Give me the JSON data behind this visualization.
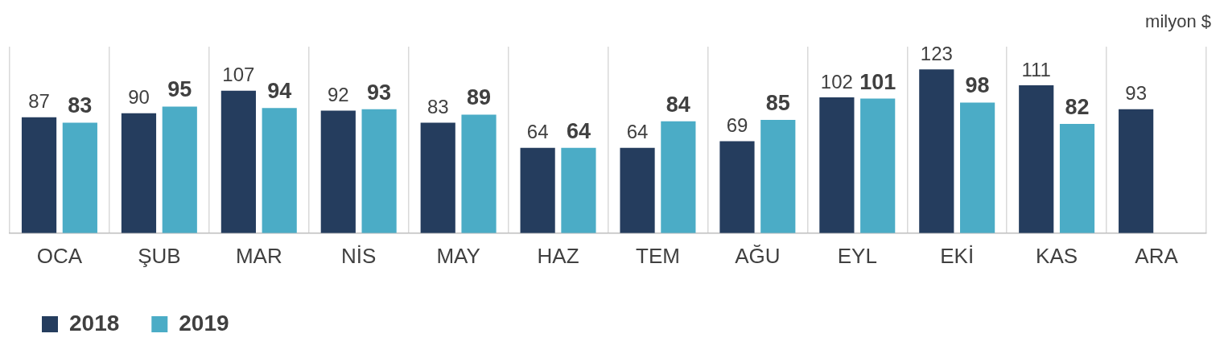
{
  "chart_data": {
    "type": "bar",
    "categories": [
      "OCA",
      "ŞUB",
      "MAR",
      "NİS",
      "MAY",
      "HAZ",
      "TEM",
      "AĞU",
      "EYL",
      "EKİ",
      "KAS",
      "ARA"
    ],
    "series": [
      {
        "name": "2018",
        "color": "#253d5e",
        "values": [
          87,
          90,
          107,
          92,
          83,
          64,
          64,
          69,
          102,
          123,
          111,
          93
        ]
      },
      {
        "name": "2019",
        "color": "#4bacc6",
        "values": [
          83,
          95,
          94,
          93,
          89,
          64,
          84,
          85,
          101,
          98,
          82,
          null
        ]
      }
    ],
    "data_labels": true,
    "grid": "x",
    "legend": "bottom left",
    "tick_labels": "x",
    "annotations": [
      "milyon $"
    ]
  }
}
